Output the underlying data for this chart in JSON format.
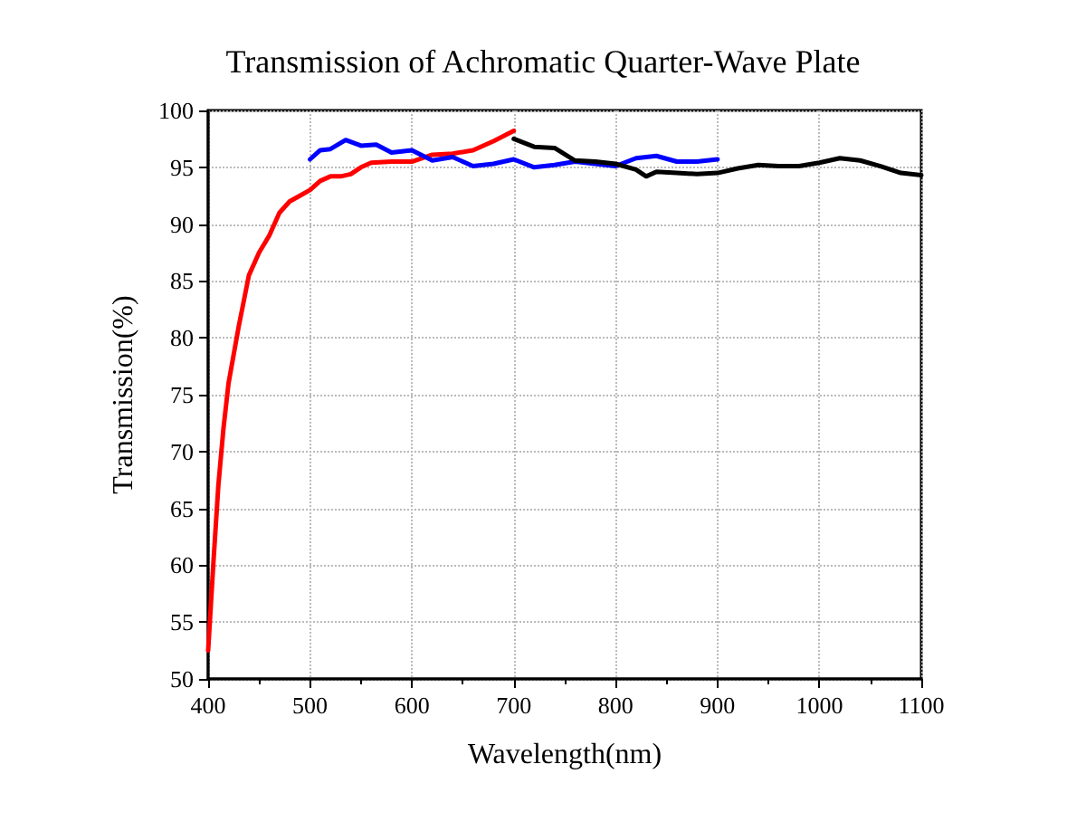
{
  "chart_data": {
    "type": "line",
    "title": "Transmission of Achromatic Quarter-Wave Plate",
    "xlabel": "Wavelength(nm)",
    "ylabel": "Transmission(%)",
    "xlim": [
      400,
      1100
    ],
    "xticks": [
      400,
      500,
      600,
      700,
      800,
      900,
      1000,
      1100
    ],
    "ylim": [
      50,
      100
    ],
    "yticks": [
      50,
      55,
      60,
      65,
      70,
      75,
      80,
      85,
      90,
      95,
      100
    ],
    "grid": true,
    "marker": "none",
    "line_style": "solid",
    "series": [
      {
        "color": "#ff0000",
        "x": [
          400,
          405,
          410,
          415,
          420,
          430,
          440,
          450,
          460,
          470,
          480,
          490,
          500,
          510,
          520,
          530,
          540,
          550,
          560,
          580,
          600,
          620,
          640,
          660,
          680,
          700
        ],
        "values": [
          52.5,
          60,
          67,
          72,
          76,
          81,
          85.5,
          87.5,
          89,
          91,
          92,
          92.5,
          93,
          93.8,
          94.2,
          94.2,
          94.4,
          95,
          95.4,
          95.5,
          95.5,
          96.1,
          96.2,
          96.5,
          97.3,
          98.2
        ]
      },
      {
        "color": "#0000ff",
        "x": [
          500,
          510,
          520,
          535,
          550,
          565,
          580,
          600,
          620,
          640,
          660,
          680,
          700,
          720,
          740,
          760,
          780,
          800,
          820,
          840,
          860,
          880,
          900
        ],
        "values": [
          95.7,
          96.5,
          96.6,
          97.4,
          96.9,
          97,
          96.3,
          96.5,
          95.6,
          95.9,
          95.1,
          95.3,
          95.7,
          95,
          95.2,
          95.5,
          95.3,
          95.1,
          95.8,
          96,
          95.5,
          95.5,
          95.7
        ]
      },
      {
        "color": "#000000",
        "x": [
          700,
          720,
          740,
          760,
          780,
          800,
          820,
          830,
          840,
          860,
          880,
          900,
          920,
          940,
          960,
          980,
          1000,
          1020,
          1040,
          1060,
          1080,
          1100
        ],
        "values": [
          97.5,
          96.8,
          96.7,
          95.6,
          95.5,
          95.3,
          94.8,
          94.2,
          94.6,
          94.5,
          94.4,
          94.5,
          94.9,
          95.2,
          95.1,
          95.1,
          95.4,
          95.8,
          95.6,
          95.1,
          94.5,
          94.3
        ]
      }
    ]
  }
}
